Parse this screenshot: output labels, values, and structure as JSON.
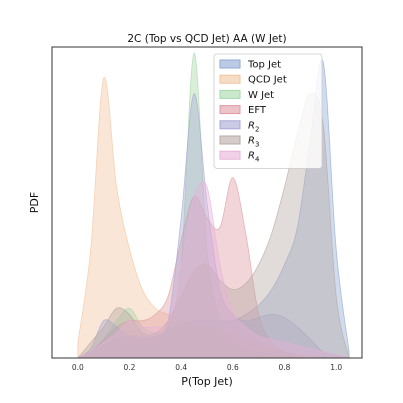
{
  "chart_data": {
    "type": "area",
    "title": "2C (Top vs QCD Jet) AA (W Jet)",
    "xlabel": "P(Top Jet)",
    "ylabel": "PDF",
    "xlim": [
      -0.1,
      1.1
    ],
    "ylim": [
      0,
      1.0
    ],
    "xticks": [
      "0.0",
      "0.2",
      "0.4",
      "0.6",
      "0.8",
      "1.0"
    ],
    "xtick_values": [
      0.0,
      0.2,
      0.4,
      0.6,
      0.8,
      1.0
    ],
    "yticks_visible": false,
    "grid": false,
    "legend_placement": "top-right",
    "x": [
      0.0,
      0.05,
      0.1,
      0.15,
      0.2,
      0.25,
      0.3,
      0.35,
      0.4,
      0.45,
      0.5,
      0.55,
      0.6,
      0.65,
      0.7,
      0.75,
      0.8,
      0.85,
      0.9,
      0.95,
      1.0,
      1.05
    ],
    "series": [
      {
        "name": "Top Jet",
        "color": "#8fa9d4",
        "values": [
          0.0,
          0.02,
          0.04,
          0.06,
          0.07,
          0.07,
          0.07,
          0.09,
          0.11,
          0.12,
          0.12,
          0.12,
          0.12,
          0.14,
          0.17,
          0.22,
          0.3,
          0.42,
          0.7,
          0.95,
          0.35,
          0.02
        ]
      },
      {
        "name": "QCD Jet",
        "color": "#f2c49e",
        "values": [
          0.05,
          0.35,
          0.9,
          0.55,
          0.35,
          0.22,
          0.16,
          0.14,
          0.12,
          0.1,
          0.1,
          0.09,
          0.08,
          0.06,
          0.04,
          0.03,
          0.02,
          0.01,
          0.01,
          0.0,
          0.0,
          0.0
        ]
      },
      {
        "name": "W Jet",
        "color": "#a6d8a8",
        "values": [
          0.0,
          0.02,
          0.06,
          0.12,
          0.16,
          0.1,
          0.08,
          0.1,
          0.3,
          0.98,
          0.35,
          0.12,
          0.06,
          0.03,
          0.02,
          0.01,
          0.01,
          0.0,
          0.0,
          0.0,
          0.0,
          0.0
        ]
      },
      {
        "name": "EFT",
        "color": "#df9ba3",
        "values": [
          0.0,
          0.02,
          0.06,
          0.1,
          0.12,
          0.12,
          0.14,
          0.2,
          0.38,
          0.52,
          0.45,
          0.42,
          0.58,
          0.4,
          0.14,
          0.05,
          0.02,
          0.01,
          0.0,
          0.0,
          0.0,
          0.0
        ]
      },
      {
        "name": "$R_2$",
        "color": "#a7a7d4",
        "values": [
          0.0,
          0.03,
          0.12,
          0.1,
          0.07,
          0.06,
          0.07,
          0.12,
          0.45,
          0.85,
          0.5,
          0.22,
          0.14,
          0.12,
          0.13,
          0.14,
          0.13,
          0.1,
          0.06,
          0.02,
          0.01,
          0.0
        ]
      },
      {
        "name": "$R_3$",
        "color": "#b7aaa4",
        "values": [
          0.0,
          0.05,
          0.1,
          0.16,
          0.14,
          0.08,
          0.08,
          0.12,
          0.2,
          0.28,
          0.3,
          0.25,
          0.22,
          0.24,
          0.3,
          0.4,
          0.55,
          0.72,
          0.85,
          0.75,
          0.2,
          0.0
        ]
      },
      {
        "name": "$R_4$",
        "color": "#e7b2d8",
        "values": [
          0.0,
          0.02,
          0.05,
          0.08,
          0.12,
          0.1,
          0.1,
          0.12,
          0.3,
          0.52,
          0.55,
          0.3,
          0.15,
          0.1,
          0.07,
          0.06,
          0.05,
          0.04,
          0.03,
          0.02,
          0.01,
          0.0
        ]
      }
    ]
  }
}
